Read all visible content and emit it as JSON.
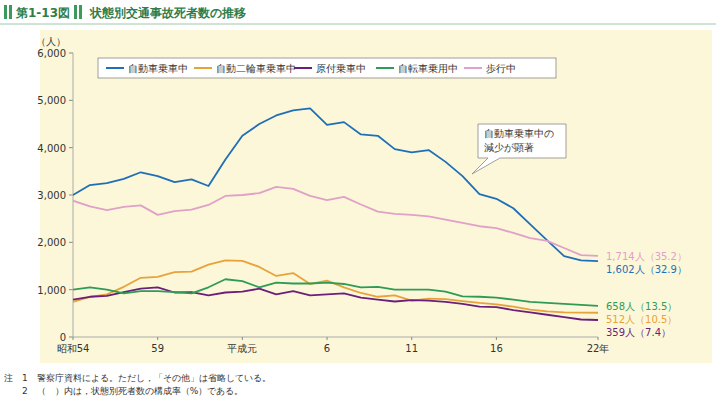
{
  "chart_data": {
    "type": "line",
    "figure_number": "第1-13図",
    "title": "状態別交通事故死者数の推移",
    "y_unit": "（人）",
    "categories": [
      "昭和54",
      null,
      null,
      null,
      null,
      "59",
      null,
      null,
      null,
      null,
      "平成元",
      null,
      null,
      null,
      null,
      "6",
      null,
      null,
      null,
      null,
      "11",
      null,
      null,
      null,
      null,
      "16",
      null,
      null,
      null,
      null,
      null,
      "22年"
    ],
    "ylim": [
      0,
      6000
    ],
    "yticks": [
      0,
      {
        "value": 1000,
        "label": "1,000"
      },
      {
        "value": 2000,
        "label": "2,000"
      },
      {
        "value": 3000,
        "label": "3,000"
      },
      {
        "value": 4000,
        "label": "4,000"
      },
      {
        "value": 5000,
        "label": "5,000"
      },
      {
        "value": 6000,
        "label": "6,000"
      }
    ],
    "grid": false,
    "legend": "top",
    "series": [
      {
        "name": "自動車乗車中",
        "color": "#1f6fb8",
        "end_label": "1,602人（32.9）",
        "values": [
          3000,
          3210,
          3250,
          3340,
          3480,
          3400,
          3270,
          3330,
          3190,
          3750,
          4250,
          4500,
          4680,
          4790,
          4830,
          4480,
          4540,
          4280,
          4250,
          3970,
          3900,
          3950,
          3700,
          3400,
          3020,
          2920,
          2720,
          2380,
          2040,
          1710,
          1620,
          1602
        ]
      },
      {
        "name": "自動二輪車乗車中",
        "color": "#e8a23a",
        "end_label": "512人（10.5）",
        "values": [
          740,
          850,
          900,
          1060,
          1250,
          1270,
          1370,
          1380,
          1530,
          1620,
          1610,
          1480,
          1290,
          1350,
          1120,
          1190,
          1050,
          930,
          850,
          880,
          770,
          810,
          800,
          760,
          720,
          690,
          640,
          580,
          540,
          520,
          515,
          512
        ]
      },
      {
        "name": "原付乗車中",
        "color": "#6b1f7a",
        "end_label": "359人（7.4）",
        "values": [
          790,
          850,
          870,
          950,
          1020,
          1050,
          940,
          950,
          880,
          940,
          960,
          1020,
          900,
          970,
          880,
          900,
          920,
          830,
          790,
          750,
          780,
          770,
          740,
          700,
          640,
          630,
          570,
          520,
          470,
          420,
          370,
          359
        ]
      },
      {
        "name": "自転車乗用中",
        "color": "#2e9b57",
        "end_label": "658人（13.5）",
        "values": [
          1000,
          1050,
          1000,
          920,
          970,
          970,
          950,
          920,
          1050,
          1220,
          1180,
          1050,
          1150,
          1130,
          1130,
          1150,
          1120,
          1050,
          1060,
          1000,
          1000,
          1000,
          960,
          860,
          850,
          830,
          790,
          740,
          720,
          700,
          680,
          658
        ]
      },
      {
        "name": "歩行中",
        "color": "#e0a0c8",
        "end_label": "1,714人（35.2）",
        "values": [
          2880,
          2760,
          2680,
          2750,
          2780,
          2580,
          2660,
          2690,
          2790,
          2980,
          3000,
          3040,
          3170,
          3130,
          2980,
          2890,
          2960,
          2800,
          2650,
          2600,
          2580,
          2550,
          2480,
          2410,
          2340,
          2300,
          2200,
          2090,
          2030,
          1880,
          1730,
          1714
        ]
      }
    ],
    "annotation": [
      "自動車乗車中の",
      "減少が顕著"
    ],
    "notes": [
      "注　1　警察庁資料による。ただし，「その他」は省略している。",
      "　　2　（　）内は，状態別死者数の構成率（%）である。"
    ]
  }
}
